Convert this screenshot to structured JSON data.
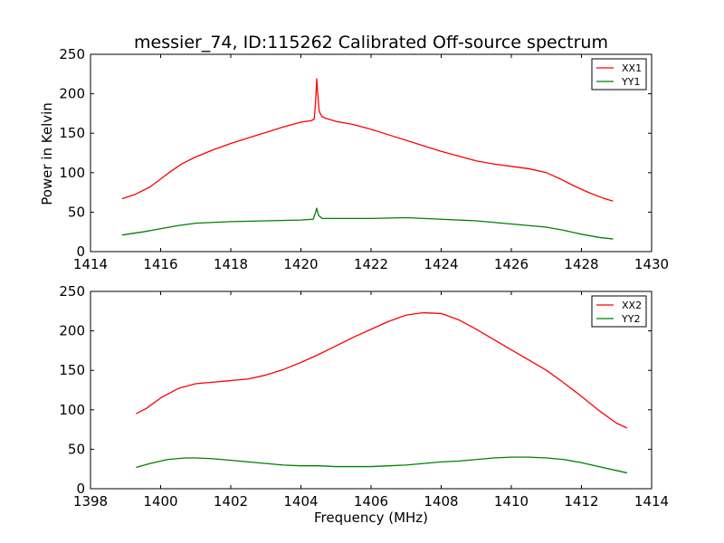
{
  "chart_data": [
    {
      "type": "line",
      "title": "messier_74, ID:115262 Calibrated Off-source spectrum",
      "xlabel": "",
      "ylabel": "Power in Kelvin",
      "xlim": [
        1414,
        1430
      ],
      "ylim": [
        0,
        250
      ],
      "xticks": [
        "1414",
        "1416",
        "1418",
        "1420",
        "1422",
        "1424",
        "1426",
        "1428",
        "1430"
      ],
      "yticks": [
        "0",
        "50",
        "100",
        "150",
        "200",
        "250"
      ],
      "legend_position": "top-right",
      "series": [
        {
          "name": "XX1",
          "color": "#ff0000",
          "points": [
            [
              1414.9,
              67
            ],
            [
              1415.3,
              73
            ],
            [
              1415.7,
              82
            ],
            [
              1416.0,
              92
            ],
            [
              1416.3,
              102
            ],
            [
              1416.6,
              111
            ],
            [
              1417.0,
              120
            ],
            [
              1417.5,
              129
            ],
            [
              1418.0,
              137
            ],
            [
              1418.5,
              144
            ],
            [
              1419.0,
              151
            ],
            [
              1419.5,
              158
            ],
            [
              1420.0,
              164
            ],
            [
              1420.3,
              166
            ],
            [
              1420.38,
              168
            ],
            [
              1420.42,
              190
            ],
            [
              1420.45,
              219
            ],
            [
              1420.48,
              200
            ],
            [
              1420.52,
              178
            ],
            [
              1420.6,
              171
            ],
            [
              1420.7,
              169
            ],
            [
              1421.0,
              165
            ],
            [
              1421.5,
              161
            ],
            [
              1422.0,
              155
            ],
            [
              1422.5,
              148
            ],
            [
              1423.0,
              141
            ],
            [
              1423.5,
              134
            ],
            [
              1424.0,
              127
            ],
            [
              1424.5,
              121
            ],
            [
              1425.0,
              115
            ],
            [
              1425.5,
              111
            ],
            [
              1426.0,
              108
            ],
            [
              1426.5,
              105
            ],
            [
              1427.0,
              100
            ],
            [
              1427.4,
              92
            ],
            [
              1427.8,
              83
            ],
            [
              1428.2,
              75
            ],
            [
              1428.6,
              68
            ],
            [
              1428.9,
              64
            ]
          ]
        },
        {
          "name": "YY1",
          "color": "#008000",
          "points": [
            [
              1414.9,
              21
            ],
            [
              1415.5,
              25
            ],
            [
              1416.0,
              29
            ],
            [
              1416.5,
              33
            ],
            [
              1417.0,
              36
            ],
            [
              1418.0,
              38
            ],
            [
              1419.0,
              39
            ],
            [
              1420.0,
              40
            ],
            [
              1420.35,
              41
            ],
            [
              1420.42,
              50
            ],
            [
              1420.45,
              55
            ],
            [
              1420.5,
              46
            ],
            [
              1420.6,
              42
            ],
            [
              1421.0,
              42
            ],
            [
              1422.0,
              42
            ],
            [
              1423.0,
              43
            ],
            [
              1424.0,
              41
            ],
            [
              1425.0,
              39
            ],
            [
              1426.0,
              35
            ],
            [
              1426.5,
              33
            ],
            [
              1427.0,
              31
            ],
            [
              1427.5,
              27
            ],
            [
              1428.0,
              22
            ],
            [
              1428.5,
              18
            ],
            [
              1428.9,
              16
            ]
          ]
        }
      ]
    },
    {
      "type": "line",
      "title": "",
      "xlabel": "Frequency (MHz)",
      "ylabel": "",
      "xlim": [
        1398,
        1414
      ],
      "ylim": [
        0,
        250
      ],
      "xticks": [
        "1398",
        "1400",
        "1402",
        "1404",
        "1406",
        "1408",
        "1410",
        "1412",
        "1414"
      ],
      "yticks": [
        "0",
        "50",
        "100",
        "150",
        "200",
        "250"
      ],
      "legend_position": "top-right",
      "series": [
        {
          "name": "XX2",
          "color": "#ff0000",
          "points": [
            [
              1399.3,
              95
            ],
            [
              1399.6,
              102
            ],
            [
              1400.0,
              115
            ],
            [
              1400.5,
              127
            ],
            [
              1401.0,
              133
            ],
            [
              1401.5,
              135
            ],
            [
              1402.0,
              137
            ],
            [
              1402.5,
              139
            ],
            [
              1403.0,
              144
            ],
            [
              1403.5,
              151
            ],
            [
              1404.0,
              160
            ],
            [
              1404.5,
              170
            ],
            [
              1405.0,
              181
            ],
            [
              1405.5,
              192
            ],
            [
              1406.0,
              202
            ],
            [
              1406.5,
              212
            ],
            [
              1407.0,
              220
            ],
            [
              1407.5,
              223
            ],
            [
              1408.0,
              222
            ],
            [
              1408.5,
              214
            ],
            [
              1409.0,
              202
            ],
            [
              1409.5,
              189
            ],
            [
              1410.0,
              176
            ],
            [
              1410.5,
              163
            ],
            [
              1411.0,
              150
            ],
            [
              1411.5,
              134
            ],
            [
              1412.0,
              117
            ],
            [
              1412.5,
              99
            ],
            [
              1413.0,
              83
            ],
            [
              1413.3,
              77
            ]
          ]
        },
        {
          "name": "YY2",
          "color": "#008000",
          "points": [
            [
              1399.3,
              27
            ],
            [
              1399.7,
              32
            ],
            [
              1400.2,
              37
            ],
            [
              1400.7,
              39
            ],
            [
              1401.0,
              39
            ],
            [
              1401.5,
              38
            ],
            [
              1402.0,
              36
            ],
            [
              1402.5,
              34
            ],
            [
              1403.0,
              32
            ],
            [
              1403.5,
              30
            ],
            [
              1404.0,
              29
            ],
            [
              1404.5,
              29
            ],
            [
              1405.0,
              28
            ],
            [
              1405.5,
              28
            ],
            [
              1406.0,
              28
            ],
            [
              1406.5,
              29
            ],
            [
              1407.0,
              30
            ],
            [
              1407.5,
              32
            ],
            [
              1408.0,
              34
            ],
            [
              1408.5,
              35
            ],
            [
              1409.0,
              37
            ],
            [
              1409.5,
              39
            ],
            [
              1410.0,
              40
            ],
            [
              1410.5,
              40
            ],
            [
              1411.0,
              39
            ],
            [
              1411.5,
              37
            ],
            [
              1412.0,
              33
            ],
            [
              1412.5,
              28
            ],
            [
              1413.0,
              23
            ],
            [
              1413.3,
              20
            ]
          ]
        }
      ]
    }
  ]
}
